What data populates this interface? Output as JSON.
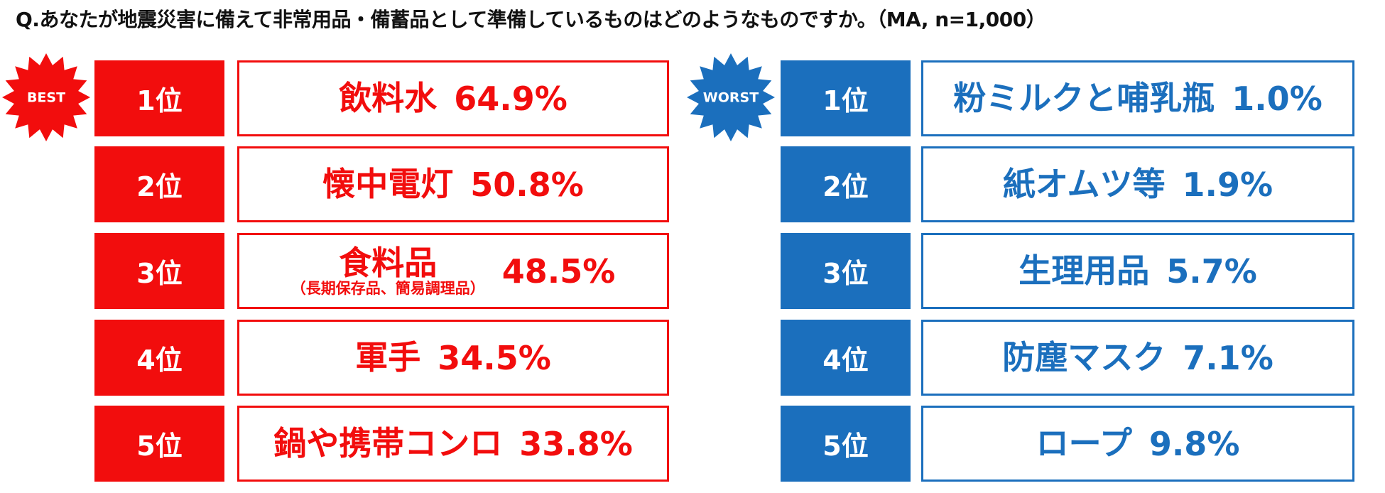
{
  "title": "Q.あなたが地震災害に備えて非常用品・備蓄品として準備しているものはどのようなものですか。（MA, n=1,000）",
  "best": {
    "badge": "BEST",
    "items": [
      {
        "rank": "1位",
        "label": "飲料水",
        "value": "64.9%"
      },
      {
        "rank": "2位",
        "label": "懐中電灯",
        "value": "50.8%"
      },
      {
        "rank": "3位",
        "label": "食料品",
        "note": "（長期保存品、簡易調理品）",
        "value": "48.5%"
      },
      {
        "rank": "4位",
        "label": "軍手",
        "value": "34.5%"
      },
      {
        "rank": "5位",
        "label": "鍋や携帯コンロ",
        "value": "33.8%"
      }
    ]
  },
  "worst": {
    "badge": "WORST",
    "items": [
      {
        "rank": "1位",
        "label": "粉ミルクと哺乳瓶",
        "value": "1.0%"
      },
      {
        "rank": "2位",
        "label": "紙オムツ等",
        "value": "1.9%"
      },
      {
        "rank": "3位",
        "label": "生理用品",
        "value": "5.7%"
      },
      {
        "rank": "4位",
        "label": "防塵マスク",
        "value": "7.1%"
      },
      {
        "rank": "5位",
        "label": "ロープ",
        "value": "9.8%"
      }
    ]
  }
}
